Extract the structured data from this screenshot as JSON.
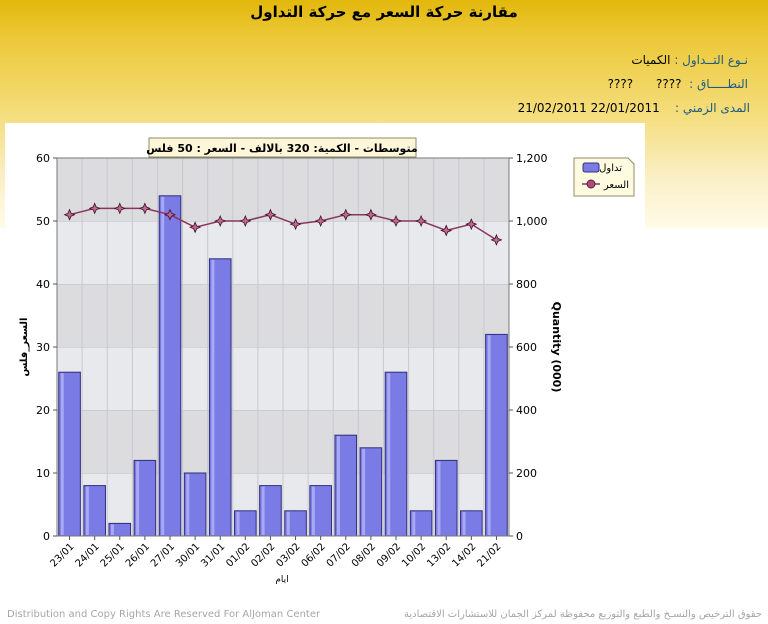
{
  "header": {
    "title": "مقارنة حركة السعر مع حركة التداول",
    "trade_type_label": "نـوع التــداول :",
    "trade_type_value": "الكميات",
    "sector_label": "النطـــــاق :",
    "sector_value_1": "????",
    "sector_value_2": "????",
    "period_label": "المدى الزمني :",
    "period_from": "22/01/2011",
    "period_to": "21/02/2011"
  },
  "chart_data": {
    "type": "bar",
    "annotation": "متوسطات - الكمية: 320 بالالف  - السعر : 50 فلس",
    "categories": [
      "23/01",
      "24/01",
      "25/01",
      "26/01",
      "27/01",
      "30/01",
      "31/01",
      "01/02",
      "02/02",
      "03/02",
      "06/02",
      "07/02",
      "08/02",
      "09/02",
      "10/02",
      "13/02",
      "14/02",
      "21/02"
    ],
    "series": [
      {
        "name": "تداول",
        "axis": "right",
        "type": "bar",
        "color": "#7b7be6",
        "values": [
          520,
          160,
          40,
          240,
          1080,
          200,
          880,
          80,
          160,
          80,
          160,
          320,
          280,
          520,
          80,
          240,
          80,
          640
        ]
      },
      {
        "name": "السعر",
        "axis": "left",
        "type": "line",
        "color": "#8a3560",
        "values": [
          51.0,
          52.0,
          52.0,
          52.0,
          51.0,
          49.0,
          50.0,
          50.0,
          51.0,
          49.5,
          50.0,
          51.0,
          51.0,
          50.0,
          50.0,
          48.5,
          49.5,
          47.0
        ]
      }
    ],
    "xlabel": "ايام",
    "ylabel_left": "السعر_فلس",
    "ylabel_right": "Quantity (000)",
    "ylim_left": [
      0,
      60
    ],
    "ylim_right": [
      0,
      1200
    ],
    "yticks_left": [
      "0",
      "10",
      "20",
      "30",
      "40",
      "50",
      "60"
    ],
    "yticks_right": [
      "0",
      "200",
      "400",
      "600",
      "800",
      "1,000",
      "1,200"
    ],
    "grid": true,
    "legend_position": "top-right"
  },
  "footer": {
    "left": "Distribution and Copy Rights Are Reserved For AlJoman Center",
    "right": "حقوق الترخيص والنسـخ والطبع والتوزيع محفوظة لمركز الجمان للاستشارات الاقتصادية"
  }
}
